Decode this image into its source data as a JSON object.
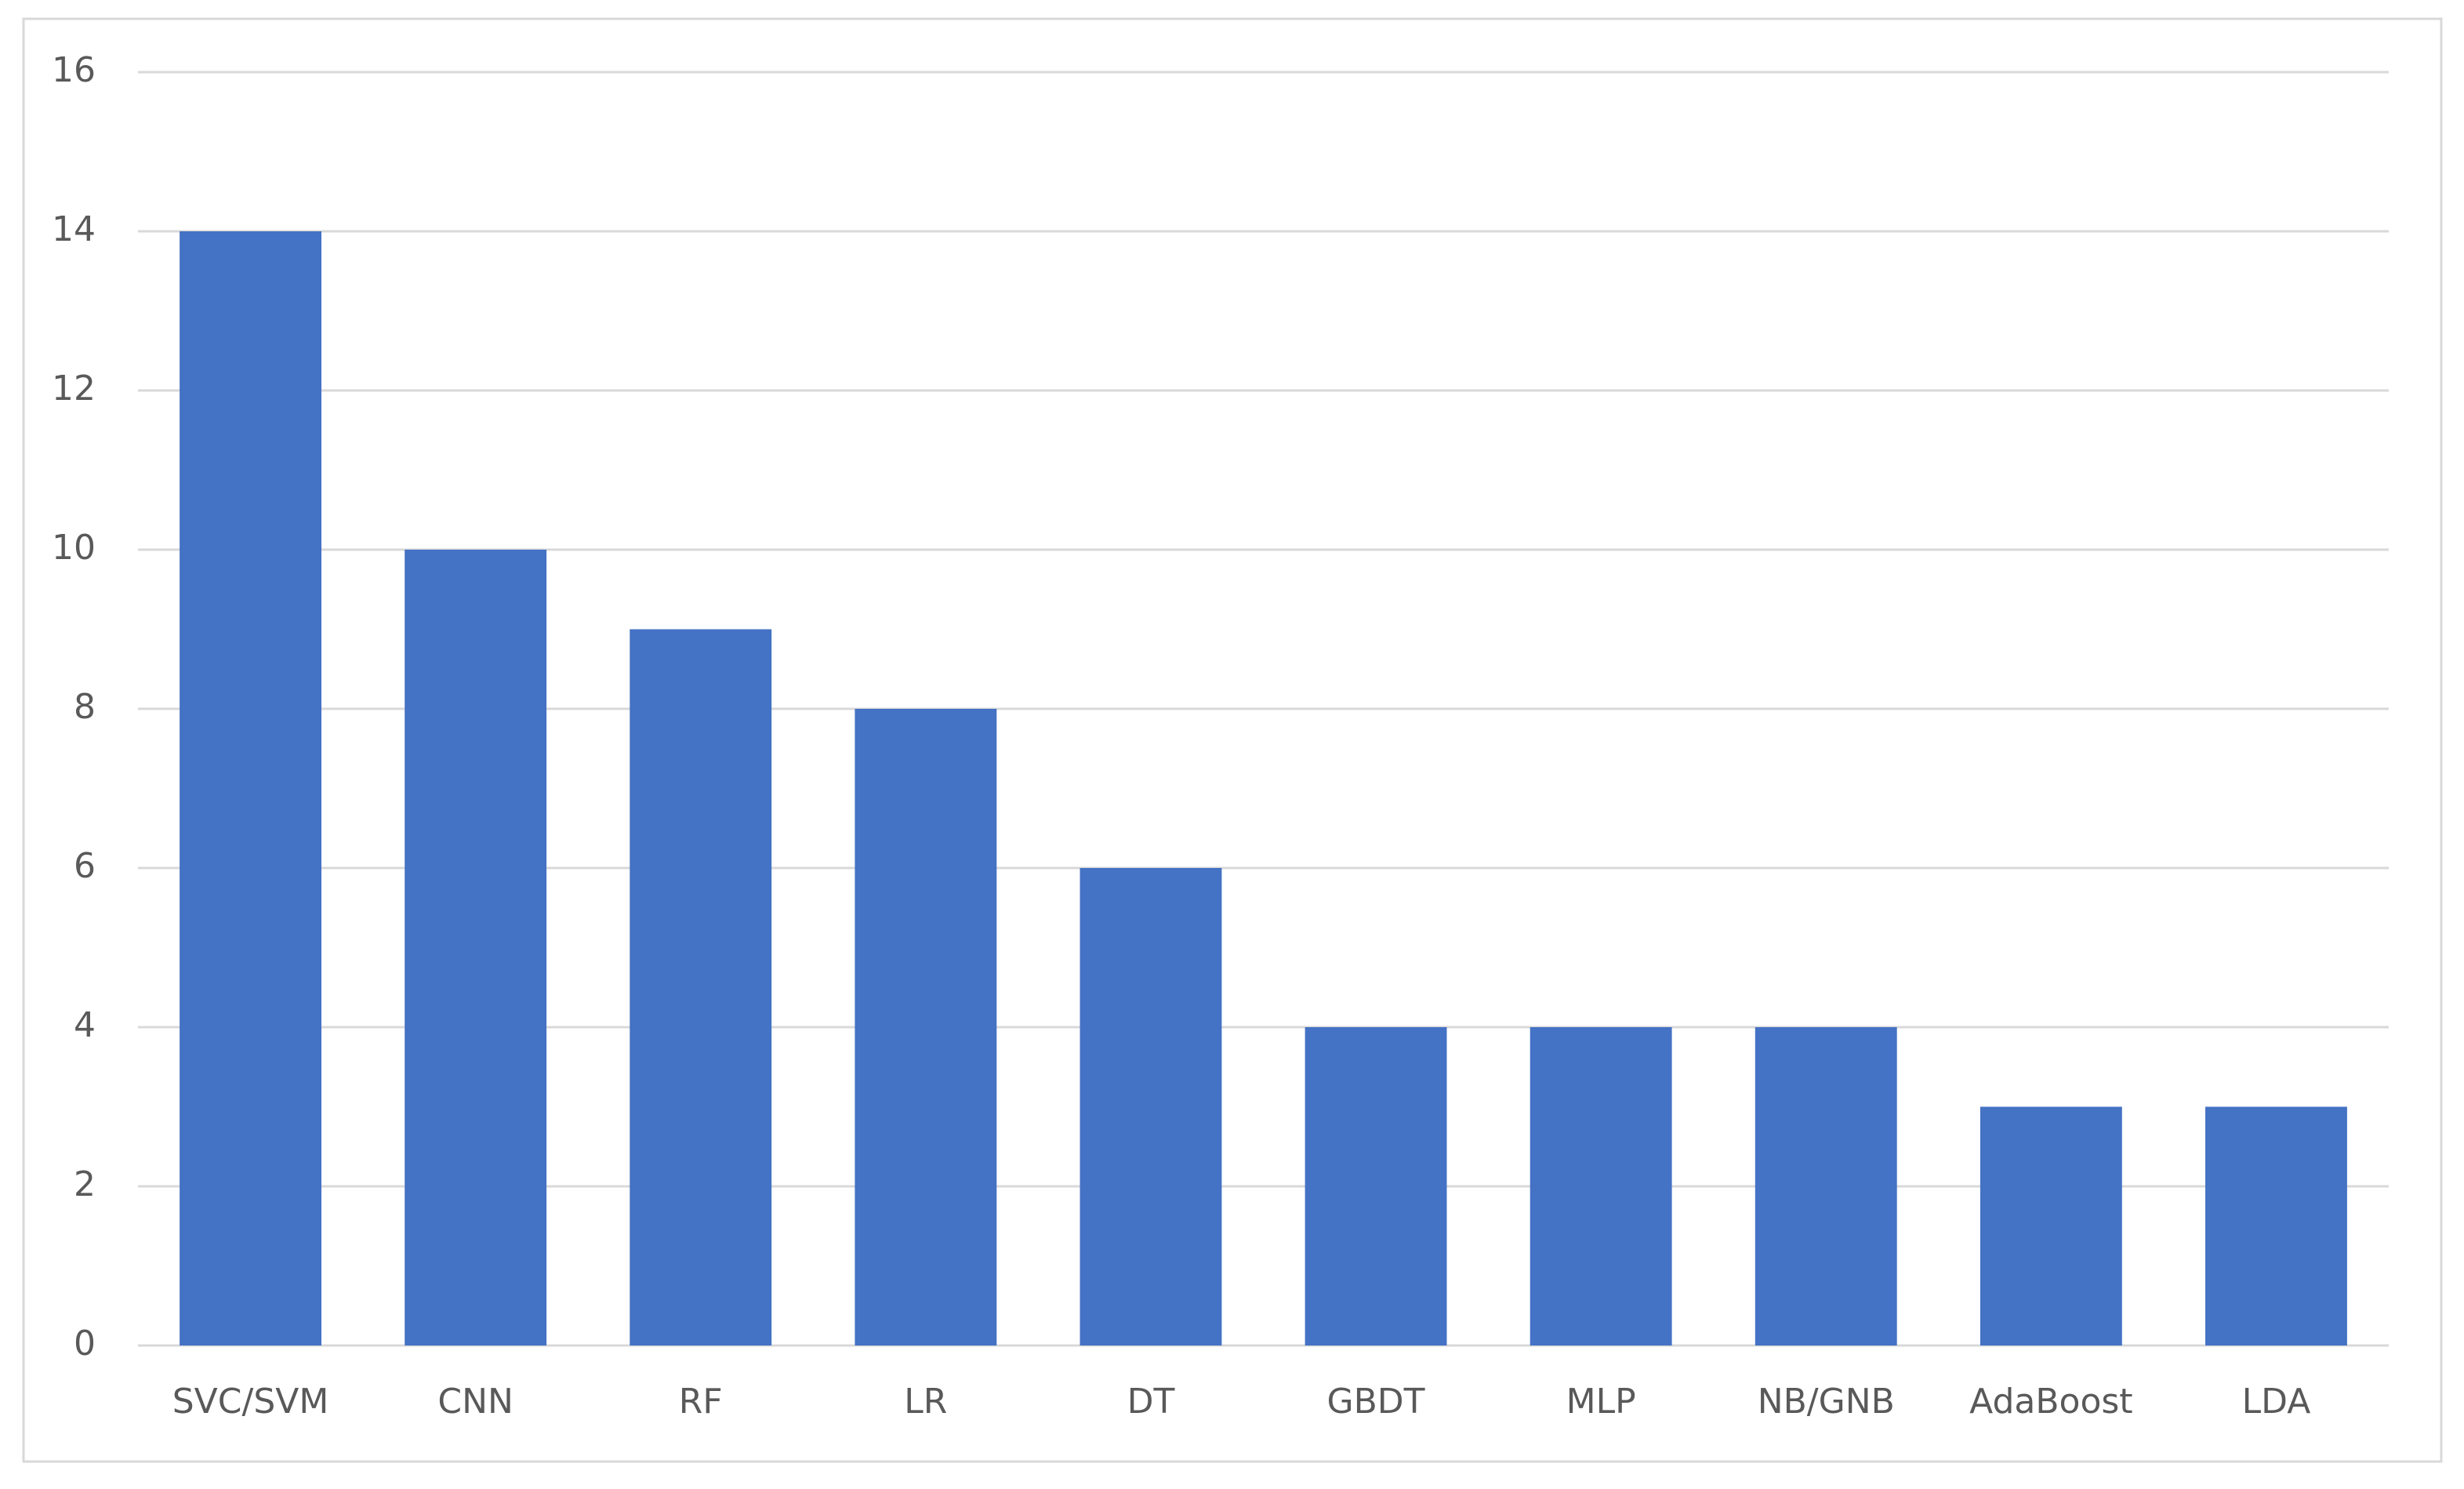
{
  "chart_data": {
    "type": "bar",
    "categories": [
      "SVC/SVM",
      "CNN",
      "RF",
      "LR",
      "DT",
      "GBDT",
      "MLP",
      "NB/GNB",
      "AdaBoost",
      "LDA"
    ],
    "values": [
      14,
      10,
      9,
      8,
      6,
      4,
      4,
      4,
      3,
      3
    ],
    "color": "#4472c4",
    "ylim": [
      0,
      16
    ],
    "yticks": [
      0,
      2,
      4,
      6,
      8,
      10,
      12,
      14,
      16
    ],
    "grid": true
  }
}
